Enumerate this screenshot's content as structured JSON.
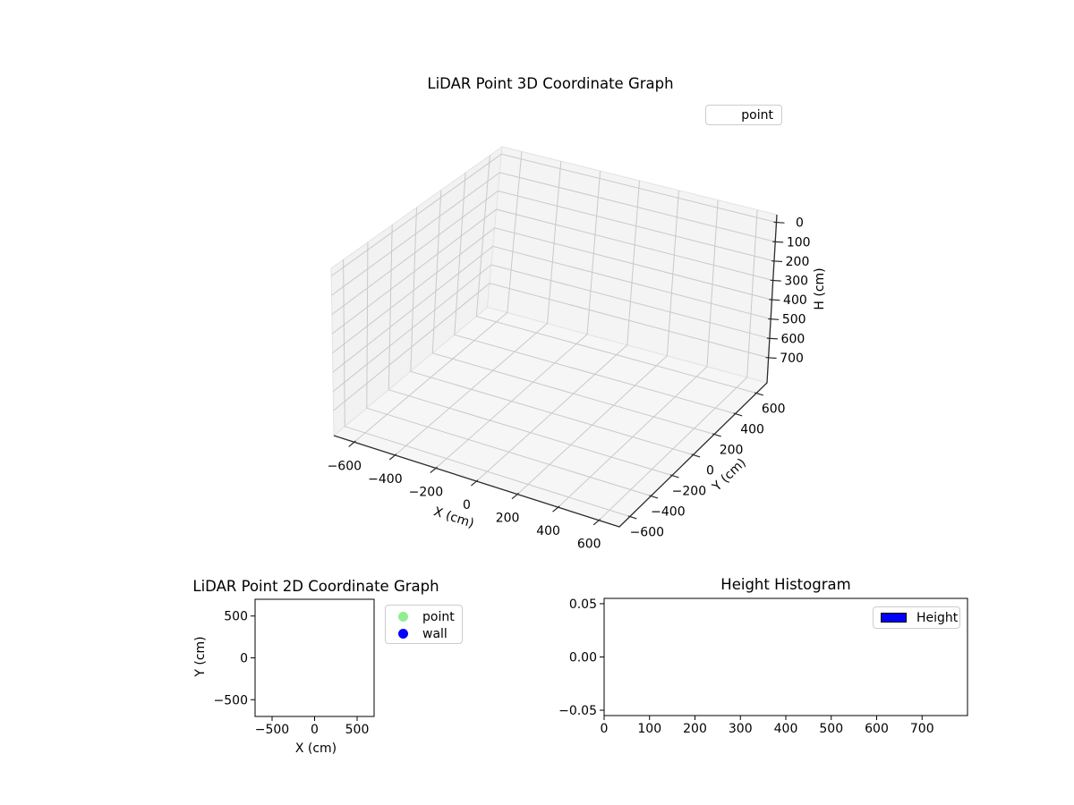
{
  "chart_data": [
    {
      "type": "scatter3d",
      "title": "LiDAR Point 3D Coordinate Graph",
      "xlabel": "X (cm)",
      "ylabel": "Y (cm)",
      "zlabel": "H (cm)",
      "xlim": [
        -700,
        700
      ],
      "ylim": [
        -700,
        700
      ],
      "zlim_top_to_bottom": [
        -40,
        830
      ],
      "z_axis_inverted": true,
      "xticks": [
        -600,
        -400,
        -200,
        0,
        200,
        400,
        600
      ],
      "yticks": [
        -600,
        -400,
        -200,
        0,
        200,
        400,
        600
      ],
      "zticks": [
        0,
        100,
        200,
        300,
        400,
        500,
        600,
        700
      ],
      "grid": true,
      "legend_position": "upper right outside",
      "legend_labels": [
        "point"
      ],
      "series": [
        {
          "name": "point",
          "points": []
        }
      ]
    },
    {
      "type": "scatter",
      "title": "LiDAR Point 2D Coordinate Graph",
      "xlabel": "X (cm)",
      "ylabel": "Y (cm)",
      "xlim": [
        -700,
        700
      ],
      "ylim": [
        -700,
        700
      ],
      "xticks": [
        -500,
        0,
        500
      ],
      "yticks": [
        500,
        0,
        -500
      ],
      "grid": false,
      "legend_position": "right outside",
      "series": [
        {
          "name": "point",
          "color": "#90ee90",
          "points": []
        },
        {
          "name": "wall",
          "color": "#0000ff",
          "points": []
        }
      ]
    },
    {
      "type": "histogram",
      "title": "Height Histogram",
      "xlim": [
        0,
        800
      ],
      "ylim": [
        -0.055,
        0.055
      ],
      "xticks": [
        0,
        100,
        200,
        300,
        400,
        500,
        600,
        700
      ],
      "yticks": [
        0.05,
        0,
        -0.05
      ],
      "ydecimals": 2,
      "grid": false,
      "legend_position": "upper right inside",
      "series": [
        {
          "name": "Height",
          "color": "#0000ff",
          "values": []
        }
      ]
    }
  ],
  "colors": {
    "point_marker": "#90ee90",
    "wall_marker": "#0000ff",
    "height_swatch": "#0000ff"
  }
}
